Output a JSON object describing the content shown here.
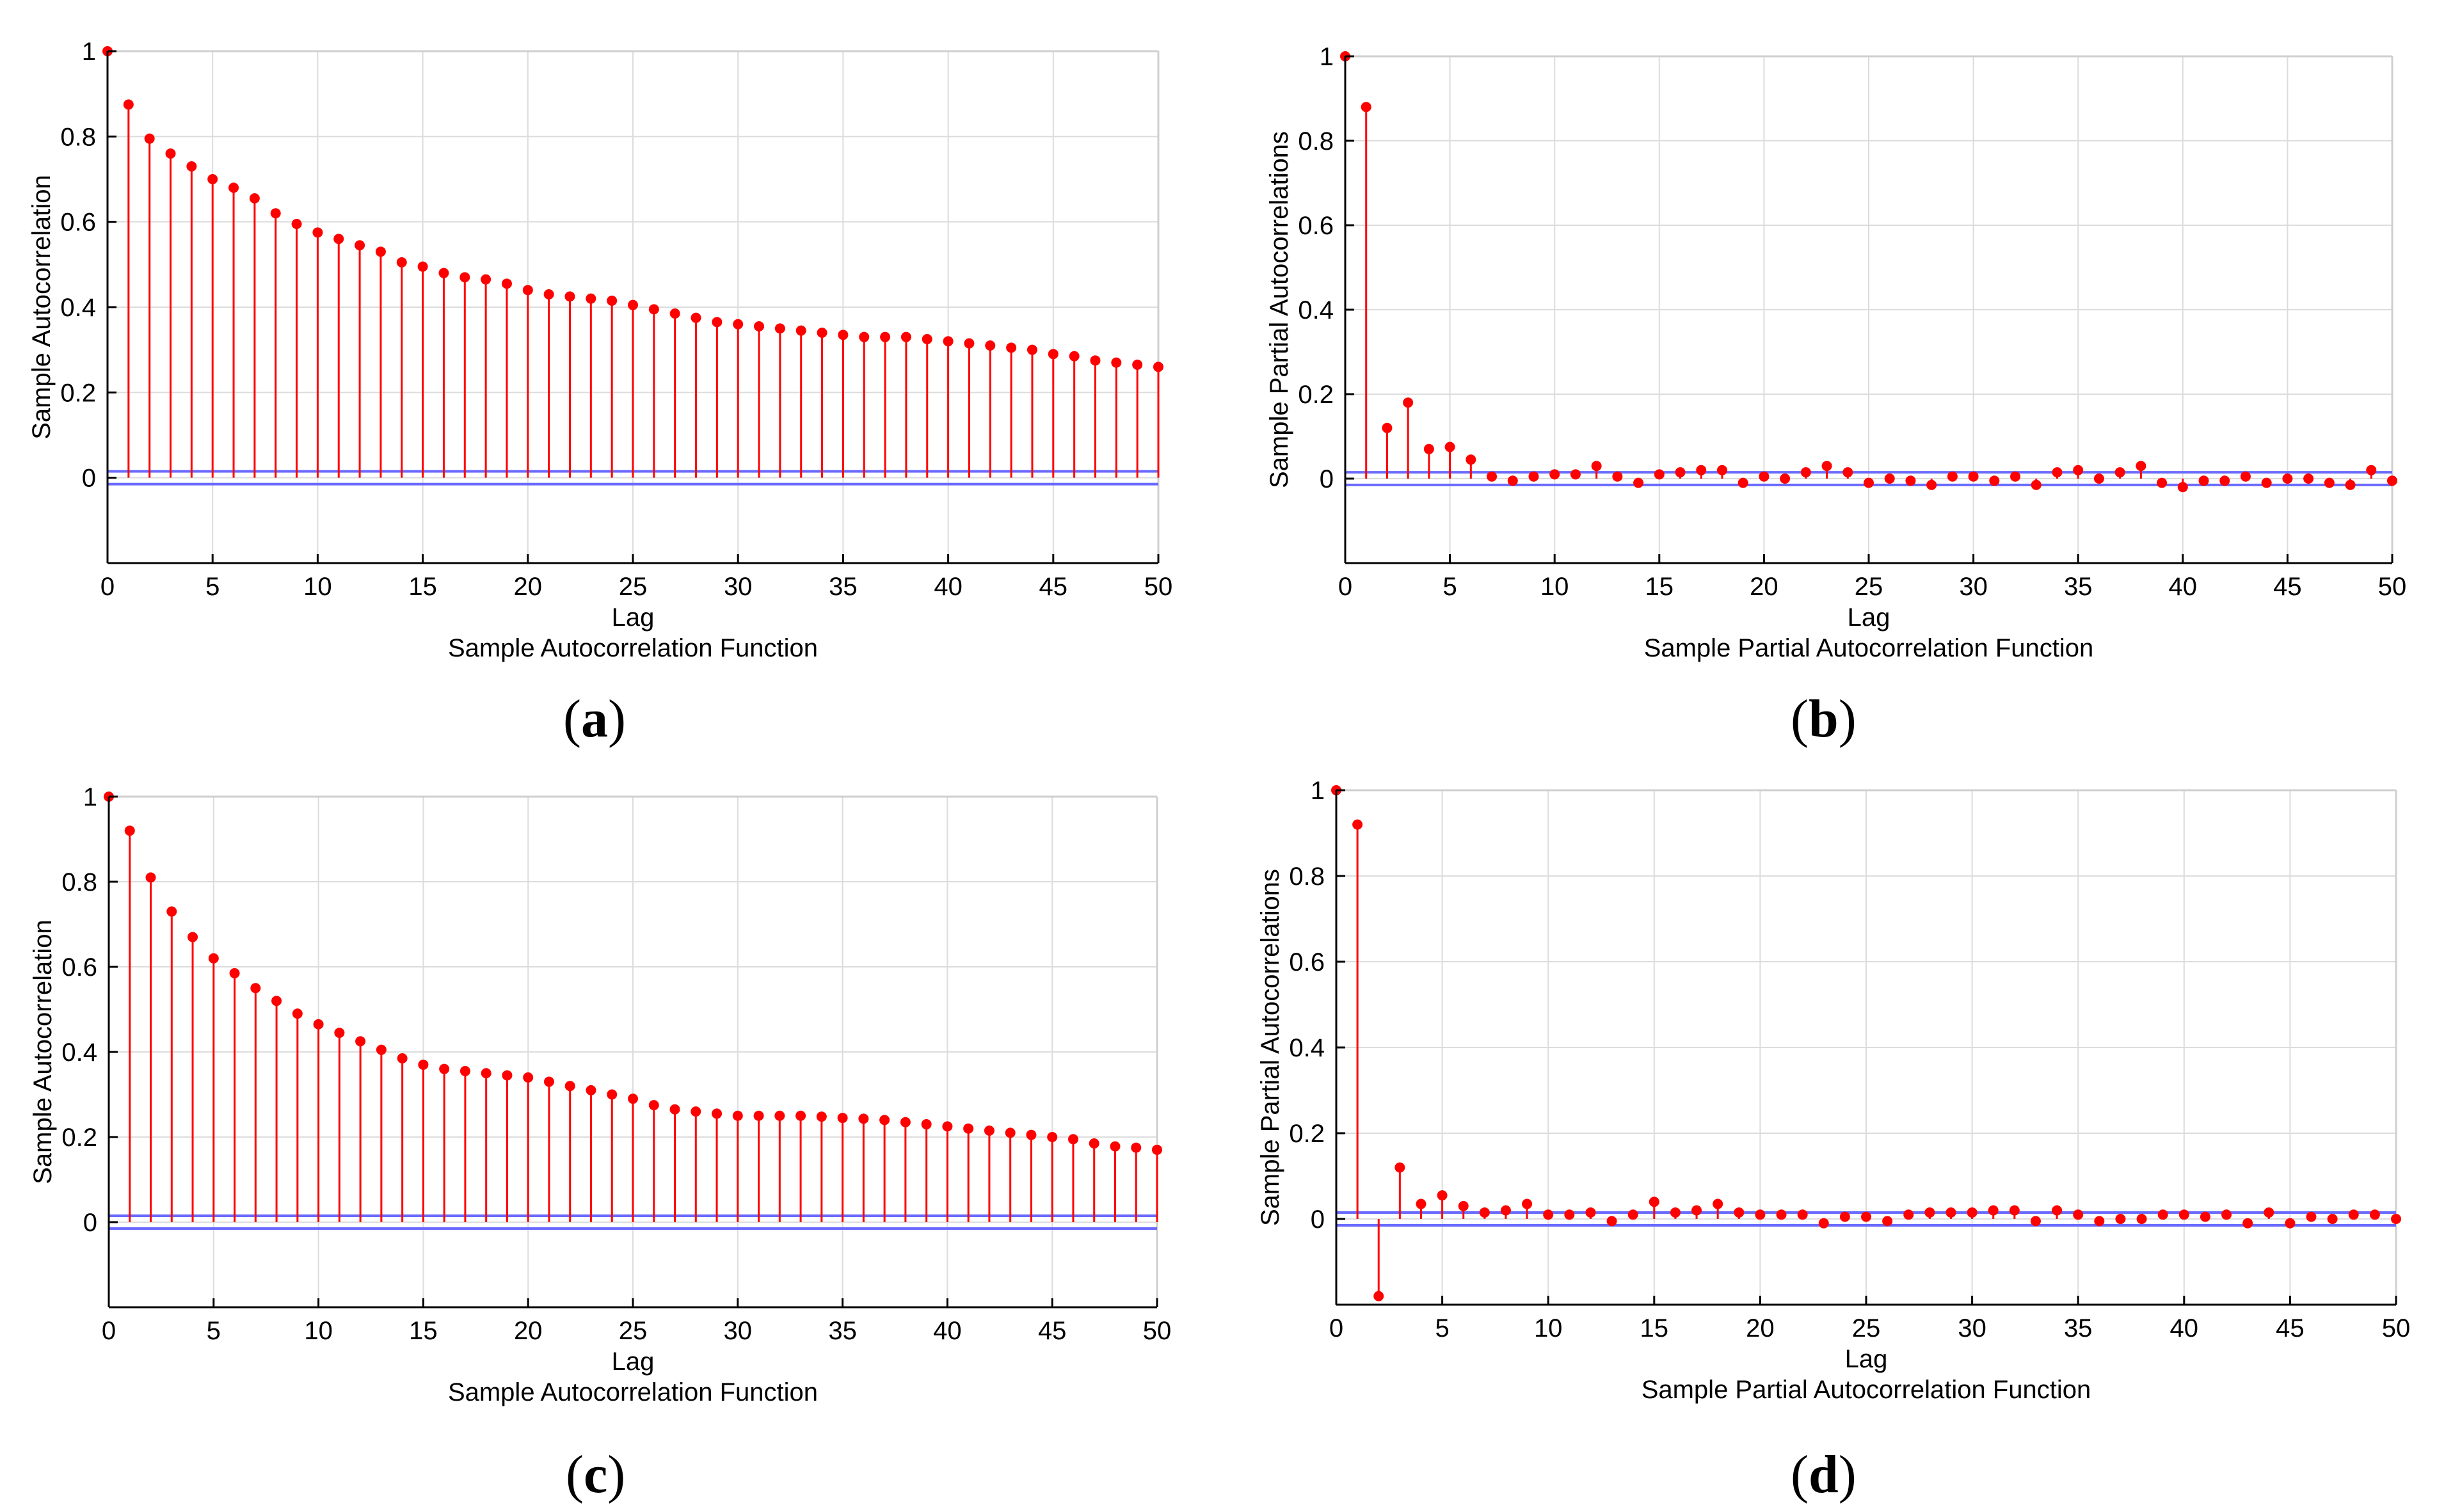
{
  "chart_data": [
    {
      "id": "a",
      "type": "stem",
      "caption": "a",
      "title": "Sample Autocorrelation Function",
      "xlabel": "Lag",
      "ylabel": "Sample Autocorrelation",
      "xlim": [
        0,
        50
      ],
      "ylim": [
        -0.2,
        1
      ],
      "xticks": [
        0,
        5,
        10,
        15,
        20,
        25,
        30,
        35,
        40,
        45,
        50
      ],
      "yticks": [
        0,
        0.2,
        0.4,
        0.6,
        0.8,
        1
      ],
      "grid": true,
      "confidence_bounds": [
        0.015,
        -0.015
      ],
      "x": [
        0,
        1,
        2,
        3,
        4,
        5,
        6,
        7,
        8,
        9,
        10,
        11,
        12,
        13,
        14,
        15,
        16,
        17,
        18,
        19,
        20,
        21,
        22,
        23,
        24,
        25,
        26,
        27,
        28,
        29,
        30,
        31,
        32,
        33,
        34,
        35,
        36,
        37,
        38,
        39,
        40,
        41,
        42,
        43,
        44,
        45,
        46,
        47,
        48,
        49,
        50
      ],
      "values": [
        1.0,
        0.875,
        0.795,
        0.76,
        0.73,
        0.7,
        0.68,
        0.655,
        0.62,
        0.595,
        0.575,
        0.56,
        0.545,
        0.53,
        0.505,
        0.495,
        0.48,
        0.47,
        0.465,
        0.455,
        0.44,
        0.43,
        0.425,
        0.42,
        0.415,
        0.405,
        0.395,
        0.385,
        0.375,
        0.365,
        0.36,
        0.355,
        0.35,
        0.345,
        0.34,
        0.335,
        0.33,
        0.33,
        0.33,
        0.325,
        0.32,
        0.315,
        0.31,
        0.305,
        0.3,
        0.29,
        0.285,
        0.275,
        0.27,
        0.265,
        0.26
      ]
    },
    {
      "id": "b",
      "type": "stem",
      "caption": "b",
      "title": "Sample Partial Autocorrelation Function",
      "xlabel": "Lag",
      "ylabel": "Sample Partial Autocorrelations",
      "xlim": [
        0,
        50
      ],
      "ylim": [
        -0.2,
        1
      ],
      "xticks": [
        0,
        5,
        10,
        15,
        20,
        25,
        30,
        35,
        40,
        45,
        50
      ],
      "yticks": [
        0,
        0.2,
        0.4,
        0.6,
        0.8,
        1
      ],
      "grid": true,
      "confidence_bounds": [
        0.015,
        -0.015
      ],
      "x": [
        0,
        1,
        2,
        3,
        4,
        5,
        6,
        7,
        8,
        9,
        10,
        11,
        12,
        13,
        14,
        15,
        16,
        17,
        18,
        19,
        20,
        21,
        22,
        23,
        24,
        25,
        26,
        27,
        28,
        29,
        30,
        31,
        32,
        33,
        34,
        35,
        36,
        37,
        38,
        39,
        40,
        41,
        42,
        43,
        44,
        45,
        46,
        47,
        48,
        49,
        50
      ],
      "values": [
        1.0,
        0.88,
        0.12,
        0.18,
        0.07,
        0.075,
        0.045,
        0.005,
        -0.005,
        0.005,
        0.01,
        0.01,
        0.03,
        0.005,
        -0.01,
        0.01,
        0.015,
        0.02,
        0.02,
        -0.01,
        0.005,
        0.0,
        0.015,
        0.03,
        0.015,
        -0.01,
        0.0,
        -0.005,
        -0.015,
        0.005,
        0.005,
        -0.005,
        0.005,
        -0.015,
        0.015,
        0.02,
        0.0,
        0.015,
        0.03,
        -0.01,
        -0.02,
        -0.005,
        -0.005,
        0.005,
        -0.01,
        0.0,
        0.0,
        -0.01,
        -0.015,
        0.02,
        -0.005
      ]
    },
    {
      "id": "c",
      "type": "stem",
      "caption": "c",
      "title": "Sample Autocorrelation Function",
      "xlabel": "Lag",
      "ylabel": "Sample Autocorrelation",
      "xlim": [
        0,
        50
      ],
      "ylim": [
        -0.2,
        1
      ],
      "xticks": [
        0,
        5,
        10,
        15,
        20,
        25,
        30,
        35,
        40,
        45,
        50
      ],
      "yticks": [
        0,
        0.2,
        0.4,
        0.6,
        0.8,
        1
      ],
      "grid": true,
      "confidence_bounds": [
        0.015,
        -0.015
      ],
      "x": [
        0,
        1,
        2,
        3,
        4,
        5,
        6,
        7,
        8,
        9,
        10,
        11,
        12,
        13,
        14,
        15,
        16,
        17,
        18,
        19,
        20,
        21,
        22,
        23,
        24,
        25,
        26,
        27,
        28,
        29,
        30,
        31,
        32,
        33,
        34,
        35,
        36,
        37,
        38,
        39,
        40,
        41,
        42,
        43,
        44,
        45,
        46,
        47,
        48,
        49,
        50
      ],
      "values": [
        1.0,
        0.92,
        0.81,
        0.73,
        0.67,
        0.62,
        0.585,
        0.55,
        0.52,
        0.49,
        0.465,
        0.445,
        0.425,
        0.405,
        0.385,
        0.37,
        0.36,
        0.355,
        0.35,
        0.345,
        0.34,
        0.33,
        0.32,
        0.31,
        0.3,
        0.29,
        0.275,
        0.265,
        0.26,
        0.255,
        0.25,
        0.25,
        0.25,
        0.25,
        0.248,
        0.245,
        0.243,
        0.24,
        0.235,
        0.23,
        0.225,
        0.22,
        0.215,
        0.21,
        0.205,
        0.2,
        0.195,
        0.185,
        0.178,
        0.175,
        0.17
      ]
    },
    {
      "id": "d",
      "type": "stem",
      "caption": "d",
      "title": "Sample Partial Autocorrelation Function",
      "xlabel": "Lag",
      "ylabel": "Sample Partial Autocorrelations",
      "xlim": [
        0,
        50
      ],
      "ylim": [
        -0.2,
        1
      ],
      "xticks": [
        0,
        5,
        10,
        15,
        20,
        25,
        30,
        35,
        40,
        45,
        50
      ],
      "yticks": [
        0,
        0.2,
        0.4,
        0.6,
        0.8,
        1
      ],
      "grid": true,
      "confidence_bounds": [
        0.015,
        -0.015
      ],
      "x": [
        0,
        1,
        2,
        3,
        4,
        5,
        6,
        7,
        8,
        9,
        10,
        11,
        12,
        13,
        14,
        15,
        16,
        17,
        18,
        19,
        20,
        21,
        22,
        23,
        24,
        25,
        26,
        27,
        28,
        29,
        30,
        31,
        32,
        33,
        34,
        35,
        36,
        37,
        38,
        39,
        40,
        41,
        42,
        43,
        44,
        45,
        46,
        47,
        48,
        49,
        50
      ],
      "values": [
        1.0,
        0.92,
        -0.18,
        0.12,
        0.035,
        0.055,
        0.03,
        0.015,
        0.02,
        0.035,
        0.01,
        0.01,
        0.015,
        -0.005,
        0.01,
        0.04,
        0.015,
        0.02,
        0.035,
        0.015,
        0.01,
        0.01,
        0.01,
        -0.01,
        0.005,
        0.005,
        -0.005,
        0.01,
        0.015,
        0.015,
        0.015,
        0.02,
        0.02,
        -0.005,
        0.02,
        0.01,
        -0.005,
        0.0,
        0.0,
        0.01,
        0.01,
        0.005,
        0.01,
        -0.01,
        0.015,
        -0.01,
        0.005,
        0.0,
        0.01,
        0.01,
        0.0
      ]
    }
  ],
  "colors": {
    "stem": "#ff0000",
    "marker": "#ff0000",
    "bound": "#6a6aff",
    "grid": "#dcdcdc",
    "axis": "#000000",
    "frame": "#cfcfcf",
    "text": "#000000"
  }
}
